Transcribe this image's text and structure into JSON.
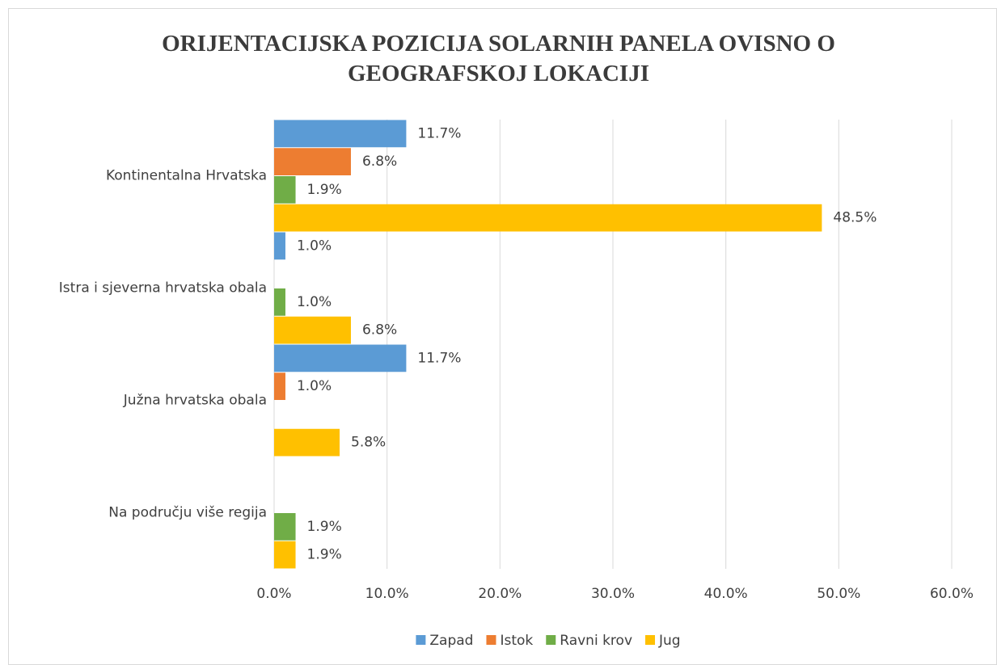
{
  "chart_data": {
    "type": "hbar",
    "title": "ORIJENTACIJSKA POZICIJA SOLARNIH PANELA OVISNO O GEOGRAFSKOJ LOKACIJI",
    "categories": [
      "Kontinentalna Hrvatska",
      "Istra i sjeverna hrvatska obala",
      "Južna hrvatska obala",
      "Na području više regija"
    ],
    "series": [
      {
        "name": "Zapad",
        "color": "#5b9bd5",
        "values": [
          11.7,
          1.0,
          11.7,
          null
        ],
        "value_labels": [
          "11.7%",
          "1.0%",
          "11.7%",
          null
        ]
      },
      {
        "name": "Istok",
        "color": "#ed7d31",
        "values": [
          6.8,
          null,
          1.0,
          null
        ],
        "value_labels": [
          "6.8%",
          null,
          "1.0%",
          null
        ]
      },
      {
        "name": "Ravni krov",
        "color": "#70ad47",
        "values": [
          1.9,
          1.0,
          null,
          1.9
        ],
        "value_labels": [
          "1.9%",
          "1.0%",
          null,
          "1.9%"
        ]
      },
      {
        "name": "Jug",
        "color": "#ffc000",
        "values": [
          48.5,
          6.8,
          5.8,
          1.9
        ],
        "value_labels": [
          "48.5%",
          "6.8%",
          "5.8%",
          "1.9%"
        ]
      }
    ],
    "xlim": [
      0,
      60
    ],
    "xticks": [
      {
        "value": 0,
        "label": "0.0%"
      },
      {
        "value": 10,
        "label": "10.0%"
      },
      {
        "value": 20,
        "label": "20.0%"
      },
      {
        "value": 30,
        "label": "30.0%"
      },
      {
        "value": 40,
        "label": "40.0%"
      },
      {
        "value": 50,
        "label": "50.0%"
      },
      {
        "value": 60,
        "label": "60.0%"
      }
    ],
    "grid": true,
    "legend": "bottom"
  }
}
